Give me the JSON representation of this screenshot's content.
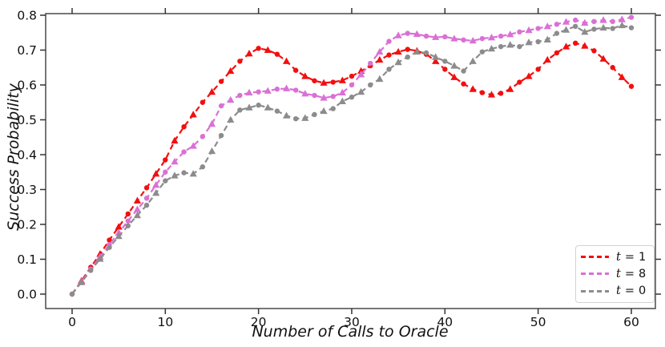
{
  "chart_data": {
    "type": "line",
    "title": "",
    "xlabel": "Number of Calls to Oracle",
    "ylabel": "Success Probability",
    "x_ticks": [
      0,
      10,
      20,
      30,
      40,
      50,
      60
    ],
    "y_ticks": [
      0.0,
      0.1,
      0.2,
      0.3,
      0.4,
      0.5,
      0.6,
      0.7,
      0.8
    ],
    "xlim": [
      -2.8,
      62.3
    ],
    "ylim": [
      -0.04,
      0.805
    ],
    "grid": false,
    "legend_position": "lower right",
    "line_style": "dashed",
    "marker_style": "alternating circle and triangle",
    "x": [
      0,
      1,
      2,
      3,
      4,
      5,
      6,
      7,
      8,
      9,
      10,
      11,
      12,
      13,
      14,
      15,
      16,
      17,
      18,
      19,
      20,
      21,
      22,
      23,
      24,
      25,
      26,
      27,
      28,
      29,
      30,
      31,
      32,
      33,
      34,
      35,
      36,
      37,
      38,
      39,
      40,
      41,
      42,
      43,
      44,
      45,
      46,
      47,
      48,
      49,
      50,
      51,
      52,
      53,
      54,
      55,
      56,
      57,
      58,
      59,
      60
    ],
    "series": [
      {
        "name": "t = 1",
        "legend_var": "t",
        "legend_eq": "=",
        "legend_val": "1",
        "color": "#f20f0f",
        "values": [
          0.0,
          0.038,
          0.077,
          0.115,
          0.155,
          0.193,
          0.23,
          0.268,
          0.305,
          0.345,
          0.385,
          0.44,
          0.48,
          0.515,
          0.55,
          0.58,
          0.61,
          0.64,
          0.668,
          0.69,
          0.705,
          0.7,
          0.688,
          0.668,
          0.642,
          0.625,
          0.612,
          0.606,
          0.608,
          0.613,
          0.625,
          0.64,
          0.655,
          0.672,
          0.686,
          0.695,
          0.702,
          0.698,
          0.688,
          0.668,
          0.645,
          0.622,
          0.603,
          0.588,
          0.578,
          0.572,
          0.576,
          0.588,
          0.608,
          0.625,
          0.645,
          0.672,
          0.692,
          0.71,
          0.72,
          0.712,
          0.698,
          0.675,
          0.65,
          0.622,
          0.596
        ]
      },
      {
        "name": "t = 8",
        "legend_var": "t",
        "legend_eq": "=",
        "legend_val": "8",
        "color": "#da70d6",
        "values": [
          0.0,
          0.036,
          0.072,
          0.107,
          0.142,
          0.176,
          0.21,
          0.243,
          0.275,
          0.313,
          0.35,
          0.38,
          0.408,
          0.425,
          0.452,
          0.488,
          0.54,
          0.557,
          0.57,
          0.578,
          0.58,
          0.583,
          0.588,
          0.59,
          0.585,
          0.575,
          0.57,
          0.563,
          0.567,
          0.578,
          0.6,
          0.63,
          0.662,
          0.695,
          0.725,
          0.742,
          0.748,
          0.746,
          0.74,
          0.737,
          0.738,
          0.733,
          0.729,
          0.727,
          0.733,
          0.736,
          0.74,
          0.745,
          0.752,
          0.757,
          0.762,
          0.768,
          0.774,
          0.781,
          0.786,
          0.778,
          0.782,
          0.786,
          0.782,
          0.788,
          0.794
        ]
      },
      {
        "name": "t = 0",
        "legend_var": "t",
        "legend_eq": "=",
        "legend_val": "0",
        "color": "#8c8c8c",
        "values": [
          0.0,
          0.034,
          0.068,
          0.101,
          0.134,
          0.166,
          0.196,
          0.226,
          0.255,
          0.29,
          0.325,
          0.34,
          0.348,
          0.345,
          0.365,
          0.41,
          0.455,
          0.5,
          0.528,
          0.535,
          0.542,
          0.535,
          0.525,
          0.512,
          0.503,
          0.505,
          0.515,
          0.525,
          0.532,
          0.553,
          0.565,
          0.58,
          0.6,
          0.617,
          0.645,
          0.665,
          0.68,
          0.695,
          0.692,
          0.68,
          0.668,
          0.655,
          0.64,
          0.668,
          0.695,
          0.704,
          0.71,
          0.715,
          0.71,
          0.722,
          0.724,
          0.73,
          0.748,
          0.758,
          0.768,
          0.752,
          0.76,
          0.764,
          0.762,
          0.771,
          0.764
        ]
      }
    ]
  }
}
